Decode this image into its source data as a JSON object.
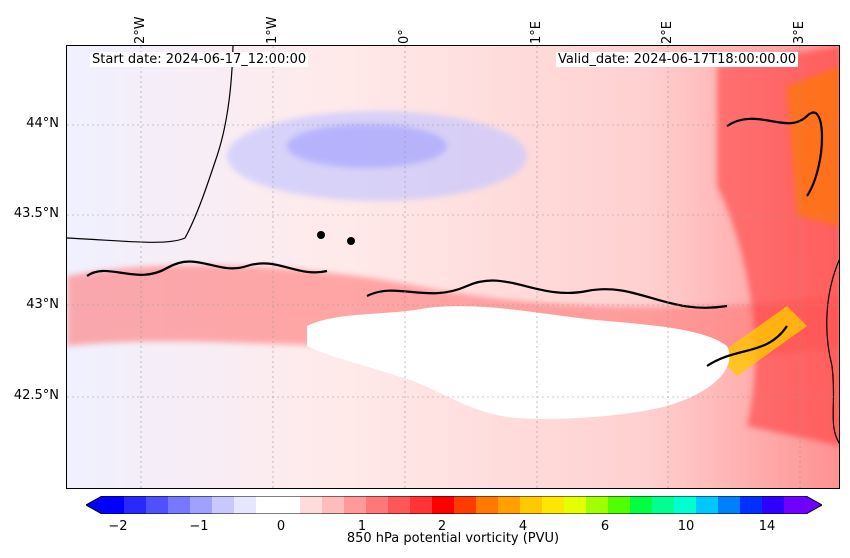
{
  "map": {
    "header": {
      "start_date": "Start date: 2024-06-17_12:00:00",
      "valid_date": "Valid_date: 2024-06-17T18:00:00.00"
    },
    "lat_labels": [
      "44°N",
      "43.5°N",
      "43°N",
      "42.5°N"
    ],
    "lon_labels": [
      "2°W",
      "1°W",
      "0°",
      "1°E",
      "2°E",
      "3°E"
    ],
    "field": "850 hPa potential vorticity",
    "colors": {
      "negative": "#0000ff",
      "zero": "#ffffff",
      "positive": "#ff0000",
      "high": "#a000ff"
    }
  },
  "colorbar": {
    "title": "850 hPa potential vorticity (PVU)",
    "tick_labels": [
      "−2",
      "−1",
      "0",
      "1",
      "2",
      "4",
      "6",
      "10",
      "14"
    ],
    "levels": [
      -2,
      -1.75,
      -1.5,
      -1.25,
      -1,
      -0.75,
      -0.5,
      -0.25,
      0,
      0.25,
      0.5,
      0.75,
      1,
      1.25,
      1.5,
      1.75,
      2,
      2.5,
      3,
      3.5,
      4,
      4.5,
      5,
      5.5,
      6,
      7,
      8,
      9,
      10,
      11,
      12,
      13,
      14
    ],
    "colors": [
      "#0000ff",
      "#2828ff",
      "#5050ff",
      "#7878ff",
      "#a0a0ff",
      "#c8c8ff",
      "#e6e6ff",
      "#ffffff",
      "#ffffff",
      "#ffdcdc",
      "#ffbcbc",
      "#ff9a9a",
      "#ff7878",
      "#ff5656",
      "#ff3434",
      "#ff0000",
      "#ff3c00",
      "#ff7800",
      "#ffa000",
      "#ffc800",
      "#ffe600",
      "#e6ff00",
      "#a0ff00",
      "#50ff00",
      "#00ff40",
      "#00ff90",
      "#00ffd0",
      "#00c8ff",
      "#0080ff",
      "#0030ff",
      "#3000ff",
      "#7000ff"
    ]
  }
}
